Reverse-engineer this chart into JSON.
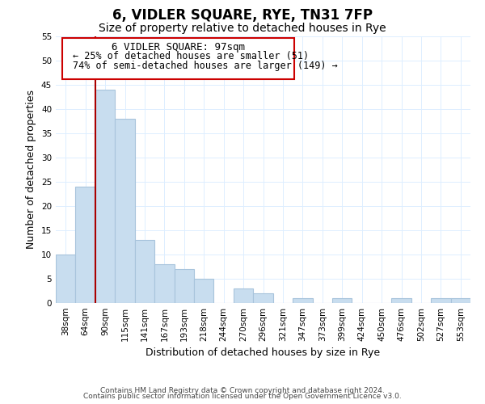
{
  "title": "6, VIDLER SQUARE, RYE, TN31 7FP",
  "subtitle": "Size of property relative to detached houses in Rye",
  "xlabel": "Distribution of detached houses by size in Rye",
  "ylabel": "Number of detached properties",
  "bar_labels": [
    "38sqm",
    "64sqm",
    "90sqm",
    "115sqm",
    "141sqm",
    "167sqm",
    "193sqm",
    "218sqm",
    "244sqm",
    "270sqm",
    "296sqm",
    "321sqm",
    "347sqm",
    "373sqm",
    "399sqm",
    "424sqm",
    "450sqm",
    "476sqm",
    "502sqm",
    "527sqm",
    "553sqm"
  ],
  "bar_values": [
    10,
    24,
    44,
    38,
    13,
    8,
    7,
    5,
    0,
    3,
    2,
    0,
    1,
    0,
    1,
    0,
    0,
    1,
    0,
    1,
    1
  ],
  "bar_color": "#c8ddef",
  "bar_edge_color": "#a8c4dc",
  "vline_x_index": 2,
  "vline_color": "#aa0000",
  "ylim": [
    0,
    55
  ],
  "yticks": [
    0,
    5,
    10,
    15,
    20,
    25,
    30,
    35,
    40,
    45,
    50,
    55
  ],
  "annotation_title": "6 VIDLER SQUARE: 97sqm",
  "annotation_line1": "← 25% of detached houses are smaller (51)",
  "annotation_line2": "74% of semi-detached houses are larger (149) →",
  "annotation_box_color": "#ffffff",
  "annotation_box_edge": "#cc0000",
  "footer_line1": "Contains HM Land Registry data © Crown copyright and database right 2024.",
  "footer_line2": "Contains public sector information licensed under the Open Government Licence v3.0.",
  "title_fontsize": 12,
  "subtitle_fontsize": 10,
  "axis_label_fontsize": 9,
  "tick_fontsize": 7.5,
  "annotation_title_fontsize": 9,
  "annotation_text_fontsize": 8.5,
  "footer_fontsize": 6.5,
  "grid_color": "#ddeeff"
}
